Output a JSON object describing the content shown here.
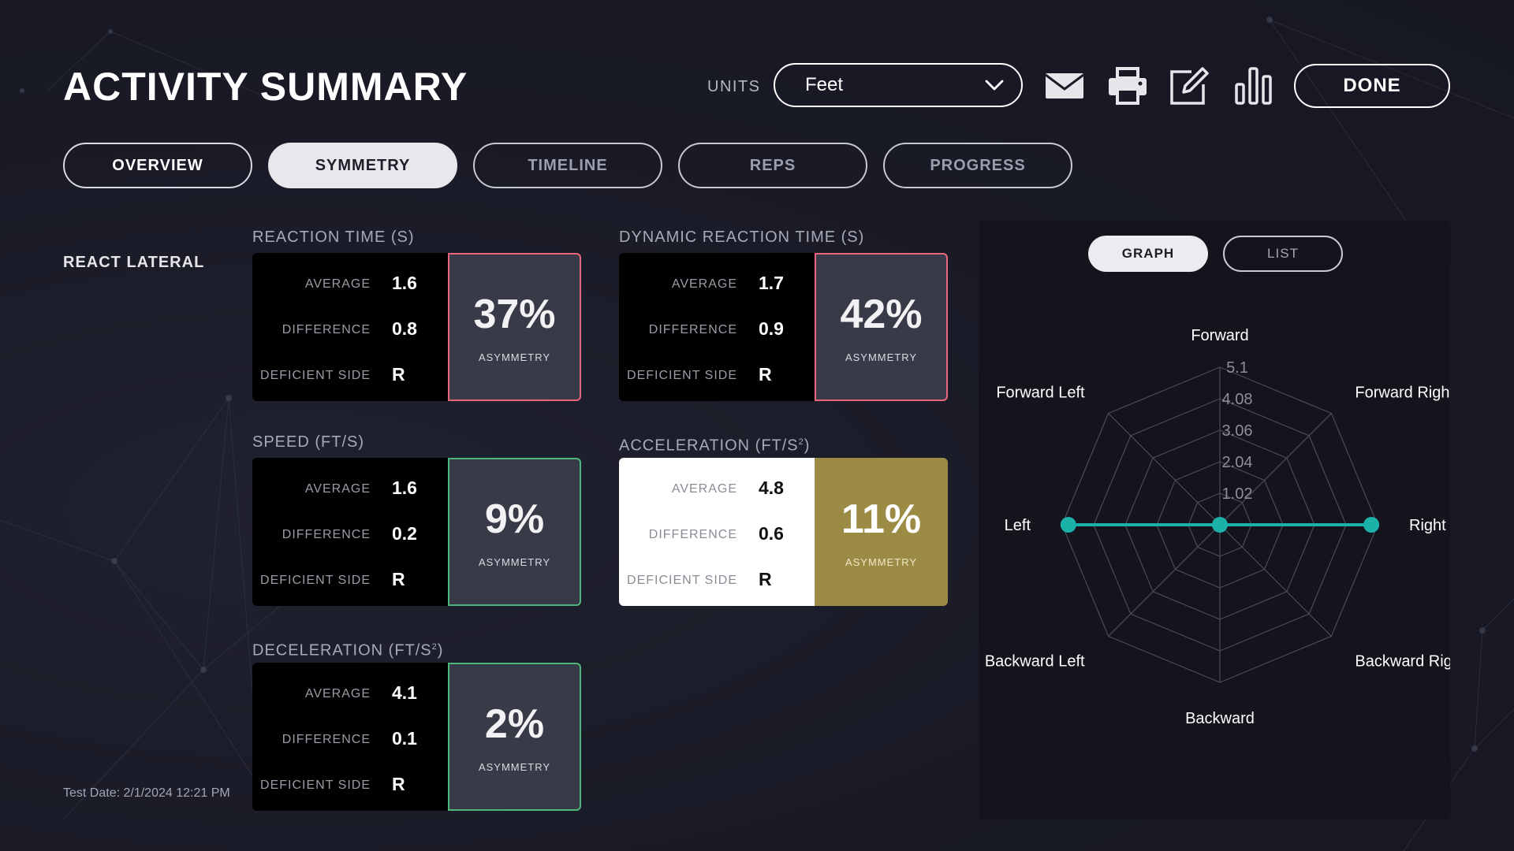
{
  "header": {
    "title": "ACTIVITY SUMMARY",
    "units_label": "UNITS",
    "units_value": "Feet",
    "done_label": "DONE"
  },
  "icons": [
    "email-icon",
    "print-icon",
    "edit-icon",
    "bar-chart-icon",
    "chevron-down-icon"
  ],
  "tabs": [
    {
      "label": "OVERVIEW",
      "state": "normal"
    },
    {
      "label": "SYMMETRY",
      "state": "active"
    },
    {
      "label": "TIMELINE",
      "state": "dim"
    },
    {
      "label": "REPS",
      "state": "dim"
    },
    {
      "label": "PROGRESS",
      "state": "dim"
    }
  ],
  "section_label": "REACT LATERAL",
  "test_date": "Test Date: 2/1/2024 12:21 PM",
  "row_labels": {
    "average": "AVERAGE",
    "difference": "DIFFERENCE",
    "deficient": "DEFICIENT SIDE",
    "asymmetry": "ASYMMETRY"
  },
  "cards": [
    {
      "title": "REACTION TIME (S)",
      "average": "1.6",
      "difference": "0.8",
      "deficient_side": "R",
      "asymmetry": "37%",
      "status_color": "#e8677a"
    },
    {
      "title": "DYNAMIC REACTION TIME (S)",
      "average": "1.7",
      "difference": "0.9",
      "deficient_side": "R",
      "asymmetry": "42%",
      "status_color": "#e8677a"
    },
    {
      "title": "SPEED (FT/S)",
      "average": "1.6",
      "difference": "0.2",
      "deficient_side": "R",
      "asymmetry": "9%",
      "status_color": "#4cb87a"
    },
    {
      "title": "ACCELERATION (FT/S",
      "title_sup": "2",
      "title_end": ")",
      "average": "4.8",
      "difference": "0.6",
      "deficient_side": "R",
      "asymmetry": "11%",
      "status_color": "#9b8b45"
    },
    {
      "title": "DECELERATION (FT/S",
      "title_sup": "2",
      "title_end": ")",
      "average": "4.1",
      "difference": "0.1",
      "deficient_side": "R",
      "asymmetry": "2%",
      "status_color": "#4cb87a"
    }
  ],
  "view_toggle": {
    "graph_label": "GRAPH",
    "list_label": "LIST",
    "active": "GRAPH"
  },
  "chart_data": {
    "type": "radar",
    "title": "",
    "axes": [
      "Forward",
      "Forward Right",
      "Right",
      "Backward Right",
      "Backward",
      "Backward Left",
      "Left",
      "Forward Left"
    ],
    "ring_labels": [
      "1.02",
      "2.04",
      "3.06",
      "4.08",
      "5.1"
    ],
    "range": [
      0,
      5.1
    ],
    "series": [
      {
        "name": "React Lateral",
        "color": "#1bb0a8",
        "values": [
          0,
          0,
          4.9,
          0,
          0,
          0,
          4.9,
          0
        ]
      }
    ]
  },
  "colors": {
    "accent": "#1bb0a8",
    "red": "#e8677a",
    "green": "#4cb87a",
    "gold": "#9b8b45"
  }
}
